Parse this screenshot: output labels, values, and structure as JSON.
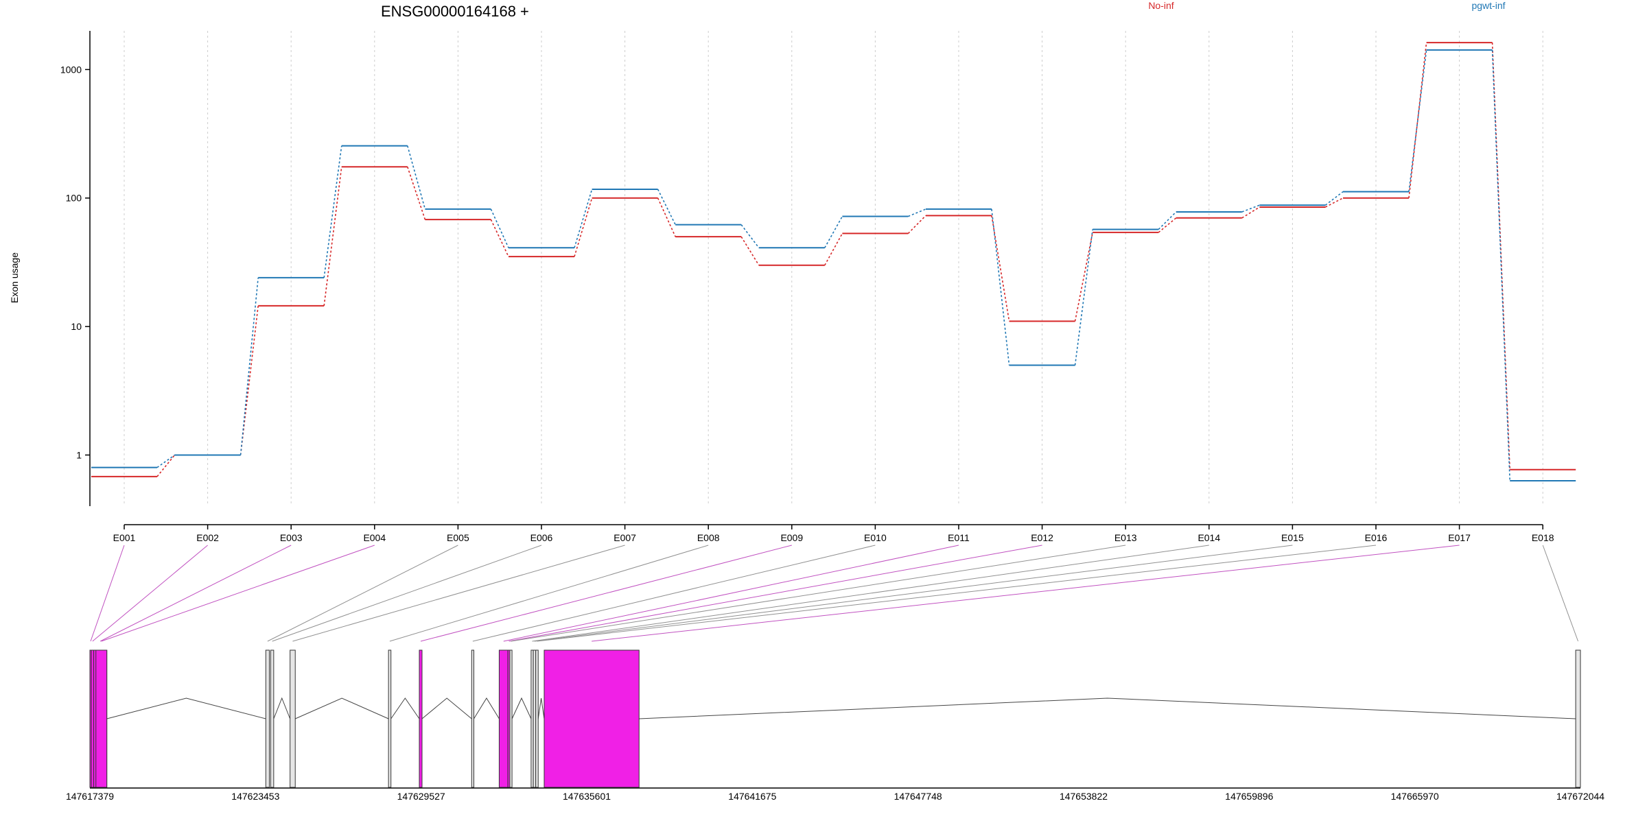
{
  "chart_data": {
    "type": "line",
    "title": "ENSG00000164168 +",
    "ylabel": "Exon usage",
    "xlabel": "",
    "y_scale": "log",
    "ylim": [
      0.4,
      2000
    ],
    "y_ticks": [
      1,
      10,
      100,
      1000
    ],
    "y_tick_labels": [
      "1",
      "10",
      "100",
      "1000"
    ],
    "grid": "vertical dashed gray at each exon",
    "legend_placement": "top, horizontal",
    "categories": [
      "E001",
      "E002",
      "E003",
      "E004",
      "E005",
      "E006",
      "E007",
      "E008",
      "E009",
      "E010",
      "E011",
      "E012",
      "E013",
      "E014",
      "E015",
      "E016",
      "E017",
      "E018"
    ],
    "series": [
      {
        "name": "No-inf",
        "color": "#d62728",
        "values": [
          0.68,
          1.0,
          14.5,
          175,
          68,
          35,
          100,
          50,
          30,
          53,
          73,
          11,
          54,
          70,
          85,
          100,
          1620,
          0.77
        ]
      },
      {
        "name": "pgwt-inf",
        "color": "#1f77b4",
        "values": [
          0.8,
          1.0,
          24,
          255,
          82,
          41,
          117,
          62,
          41,
          72,
          82,
          5,
          57,
          78,
          88,
          112,
          1420,
          0.63
        ]
      }
    ],
    "gene_model": {
      "coord_start": 147617379,
      "coord_end": 147672044,
      "coord_ticks": [
        147617379,
        147623453,
        147629527,
        147635601,
        147641675,
        147647748,
        147653822,
        147659896,
        147665970,
        147672044
      ],
      "highlight_color": "#f020e6",
      "exons": [
        {
          "id": "E001",
          "start": 147617379,
          "end": 147617430,
          "highlight": true
        },
        {
          "id": "E002",
          "start": 147617430,
          "end": 147617520,
          "highlight": true
        },
        {
          "id": "E003",
          "start": 147617520,
          "end": 147618000,
          "highlight": true
        },
        {
          "id": "E004",
          "start": 147617600,
          "end": 147618000,
          "highlight": true
        },
        {
          "id": "E005",
          "start": 147623830,
          "end": 147623960,
          "highlight": false
        },
        {
          "id": "E006",
          "start": 147624010,
          "end": 147624120,
          "highlight": false
        },
        {
          "id": "E007",
          "start": 147624720,
          "end": 147624910,
          "highlight": false
        },
        {
          "id": "E008",
          "start": 147628330,
          "end": 147628420,
          "highlight": false
        },
        {
          "id": "E009",
          "start": 147629460,
          "end": 147629560,
          "highlight": true
        },
        {
          "id": "E010",
          "start": 147631380,
          "end": 147631460,
          "highlight": false
        },
        {
          "id": "E011",
          "start": 147632390,
          "end": 147632710,
          "highlight": true
        },
        {
          "id": "E012",
          "start": 147632710,
          "end": 147632780,
          "highlight": true
        },
        {
          "id": "E013",
          "start": 147632780,
          "end": 147632860,
          "highlight": false
        },
        {
          "id": "E014",
          "start": 147633560,
          "end": 147633640,
          "highlight": false
        },
        {
          "id": "E015",
          "start": 147633640,
          "end": 147633730,
          "highlight": false
        },
        {
          "id": "E016",
          "start": 147633730,
          "end": 147633820,
          "highlight": false
        },
        {
          "id": "E017",
          "start": 147634040,
          "end": 147637520,
          "highlight": true
        },
        {
          "id": "E018",
          "start": 147671870,
          "end": 147672044,
          "highlight": false
        }
      ]
    }
  }
}
